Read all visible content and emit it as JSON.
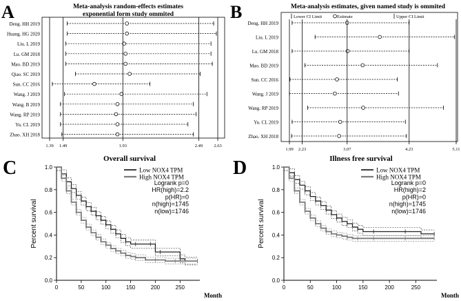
{
  "figure_letters": [
    "A",
    "B",
    "C",
    "D"
  ],
  "chart_data": [
    {
      "type": "forest",
      "panel": "A",
      "title": "Meta-analysis random-effects estimates exponential form study ommited",
      "title_lines": [
        "Meta-analysis random-effects estimates",
        "exponential form study ommited"
      ],
      "xlim": [
        1.39,
        2.63
      ],
      "x_ticks": [
        "1.39",
        "1.49",
        "1.93",
        "2.49",
        "2.63"
      ],
      "x_tick_values": [
        1.39,
        1.49,
        1.93,
        2.49,
        2.63
      ],
      "studies": [
        {
          "label": "Deng. HH 2019",
          "estimate": 1.96,
          "lower": 1.52,
          "upper": 2.6
        },
        {
          "label": "Huang. HG 2020",
          "estimate": 1.96,
          "lower": 1.52,
          "upper": 2.62
        },
        {
          "label": "Liu. L 2019",
          "estimate": 1.94,
          "lower": 1.51,
          "upper": 2.58
        },
        {
          "label": "Lu. GM 2018",
          "estimate": 1.95,
          "lower": 1.51,
          "upper": 2.58
        },
        {
          "label": "Mao. BD 2019",
          "estimate": 1.95,
          "lower": 1.51,
          "upper": 2.59
        },
        {
          "label": "Qiao. SC 2019",
          "estimate": 1.98,
          "lower": 1.58,
          "upper": 2.5
        },
        {
          "label": "Sun. CC 2016",
          "estimate": 1.72,
          "lower": 1.41,
          "upper": 2.13
        },
        {
          "label": "Wang. J 2019",
          "estimate": 1.92,
          "lower": 1.5,
          "upper": 2.55
        },
        {
          "label": "Wang. B 2019",
          "estimate": 1.89,
          "lower": 1.47,
          "upper": 2.45
        },
        {
          "label": "Wang. RP 2019",
          "estimate": 1.88,
          "lower": 1.47,
          "upper": 2.47
        },
        {
          "label": "Yu. CL 2019",
          "estimate": 1.89,
          "lower": 1.47,
          "upper": 2.41
        },
        {
          "label": "Zhao. XH 2018",
          "estimate": 1.89,
          "lower": 1.48,
          "upper": 2.45
        }
      ]
    },
    {
      "type": "forest",
      "panel": "B",
      "title": "Meta-analysis estimates, given named study is ommited",
      "legend": [
        "Lower CI Limit",
        "Estimate",
        "Upper CI Limit"
      ],
      "xlim": [
        1.99,
        5.11
      ],
      "x_ticks": [
        "1.99",
        "2.23",
        "3.07",
        "4.23",
        "5.11"
      ],
      "x_tick_values": [
        1.99,
        2.23,
        3.07,
        4.23,
        5.11
      ],
      "studies": [
        {
          "label": "Deng. HH 2019",
          "estimate": 3.07,
          "lower": 2.04,
          "upper": 4.23
        },
        {
          "label": "Liu. L 2019",
          "estimate": 3.68,
          "lower": 2.47,
          "upper": 5.08
        },
        {
          "label": "Lu. GM 2018",
          "estimate": 3.08,
          "lower": 2.04,
          "upper": 4.23
        },
        {
          "label": "Mao. BD 2019",
          "estimate": 3.36,
          "lower": 2.28,
          "upper": 4.76
        },
        {
          "label": "Sun. CC 2016",
          "estimate": 2.88,
          "lower": 2.0,
          "upper": 4.01
        },
        {
          "label": "Wang. J 2019",
          "estimate": 2.84,
          "lower": 1.99,
          "upper": 4.03
        },
        {
          "label": "Wang. RP 2019",
          "estimate": 3.37,
          "lower": 2.33,
          "upper": 4.87
        },
        {
          "label": "Yu. CL 2019",
          "estimate": 2.94,
          "lower": 2.04,
          "upper": 4.16
        },
        {
          "label": "Zhao. XH 2018",
          "estimate": 2.92,
          "lower": 2.03,
          "upper": 4.18
        }
      ]
    },
    {
      "type": "line",
      "subtype": "kaplan-meier",
      "panel": "C",
      "title": "Overall survival",
      "xlabel": "Month",
      "ylabel": "Percent survival",
      "xlim": [
        0,
        290
      ],
      "ylim": [
        0,
        1.0
      ],
      "x_ticks": [
        "0",
        "50",
        "100",
        "150",
        "200",
        "250"
      ],
      "y_ticks": [
        "0.0",
        "0.2",
        "0.4",
        "0.6",
        "0.8",
        "1.0"
      ],
      "legend": {
        "placement": "top-right",
        "entries": [
          "Low NOX4 TPM",
          "High NOX4 TPM"
        ]
      },
      "stats": [
        "Logrank p=0",
        "HR(high)=2.2",
        "p(HR)=0",
        "n(high)=1745",
        "n(low)=1746"
      ],
      "series": [
        {
          "name": "Low NOX4 TPM",
          "x": [
            0,
            10,
            20,
            30,
            40,
            50,
            60,
            70,
            80,
            90,
            100,
            110,
            120,
            130,
            140,
            150,
            160,
            175,
            190,
            200,
            210,
            230,
            250,
            260,
            285
          ],
          "y": [
            1.0,
            0.94,
            0.87,
            0.81,
            0.75,
            0.7,
            0.65,
            0.61,
            0.57,
            0.53,
            0.49,
            0.45,
            0.41,
            0.37,
            0.34,
            0.32,
            0.32,
            0.32,
            0.32,
            0.25,
            0.25,
            0.25,
            0.19,
            0.17,
            0.17
          ]
        },
        {
          "name": "High NOX4 TPM",
          "x": [
            0,
            10,
            20,
            30,
            40,
            50,
            60,
            70,
            80,
            90,
            100,
            110,
            120,
            130,
            140,
            150,
            160,
            180,
            200,
            220,
            240,
            260,
            285
          ],
          "y": [
            1.0,
            0.9,
            0.79,
            0.69,
            0.6,
            0.53,
            0.47,
            0.42,
            0.38,
            0.34,
            0.31,
            0.28,
            0.26,
            0.24,
            0.22,
            0.21,
            0.2,
            0.18,
            0.18,
            0.17,
            0.17,
            0.17,
            0.17
          ]
        }
      ]
    },
    {
      "type": "line",
      "subtype": "kaplan-meier",
      "panel": "D",
      "title": "Illness free survival",
      "xlabel": "Month",
      "ylabel": "Percent survival",
      "xlim": [
        0,
        290
      ],
      "ylim": [
        0,
        1.0
      ],
      "x_ticks": [
        "0",
        "50",
        "100",
        "150",
        "200",
        "250"
      ],
      "y_ticks": [
        "0.0",
        "0.2",
        "0.4",
        "0.6",
        "0.8",
        "1.0"
      ],
      "legend": {
        "placement": "top-right",
        "entries": [
          "Low NOX4 TPM",
          "High NOX4 TPM"
        ]
      },
      "stats": [
        "Logrank p=0",
        "HR(high)=2",
        "p(HR)=0",
        "n(high)=1745",
        "n(low)=1746"
      ],
      "series": [
        {
          "name": "Low NOX4 TPM",
          "x": [
            0,
            10,
            20,
            30,
            40,
            50,
            60,
            70,
            80,
            90,
            100,
            110,
            120,
            130,
            140,
            150,
            170,
            200,
            230,
            260,
            285
          ],
          "y": [
            1.0,
            0.95,
            0.89,
            0.84,
            0.79,
            0.74,
            0.7,
            0.66,
            0.62,
            0.58,
            0.55,
            0.52,
            0.5,
            0.47,
            0.45,
            0.43,
            0.43,
            0.43,
            0.43,
            0.41,
            0.41
          ]
        },
        {
          "name": "High NOX4 TPM",
          "x": [
            0,
            10,
            20,
            30,
            40,
            50,
            60,
            70,
            80,
            90,
            100,
            110,
            120,
            130,
            140,
            150,
            170,
            200,
            230,
            260,
            285
          ],
          "y": [
            1.0,
            0.9,
            0.79,
            0.69,
            0.61,
            0.55,
            0.5,
            0.46,
            0.43,
            0.41,
            0.4,
            0.39,
            0.38,
            0.37,
            0.37,
            0.37,
            0.37,
            0.37,
            0.37,
            0.37,
            0.37
          ]
        }
      ]
    }
  ]
}
